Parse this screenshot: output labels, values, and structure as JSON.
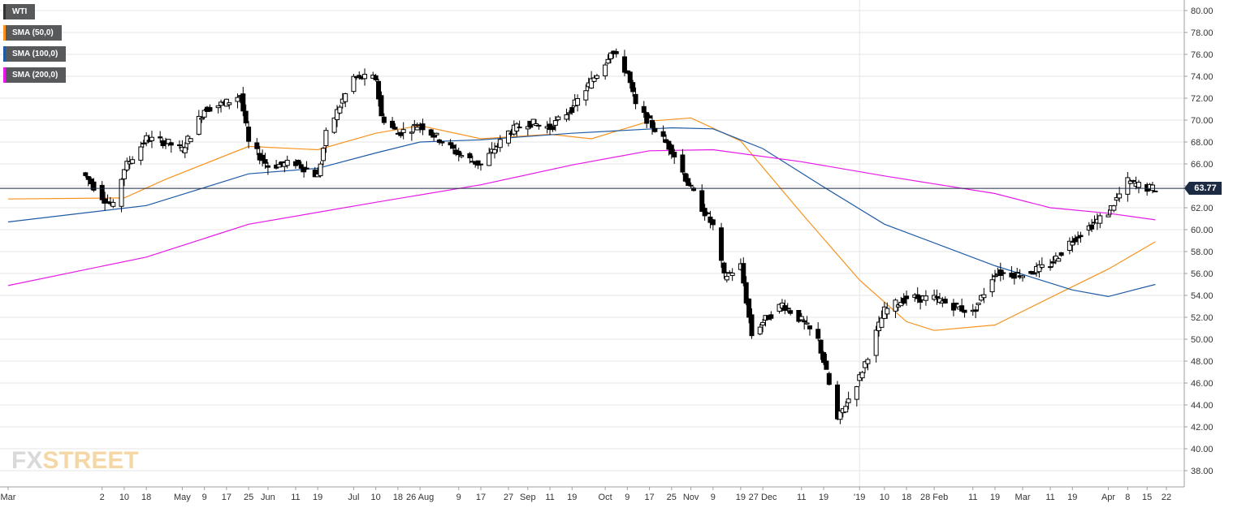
{
  "chart_data": {
    "type": "candlestick",
    "title": "",
    "instrument": "WTI",
    "last_price": "63.77",
    "ylim": [
      38,
      81
    ],
    "y_ticks": [
      "80.00",
      "78.00",
      "76.00",
      "74.00",
      "72.00",
      "70.00",
      "68.00",
      "66.00",
      "64.00",
      "62.00",
      "60.00",
      "58.00",
      "56.00",
      "54.00",
      "52.00",
      "50.00",
      "48.00",
      "46.00",
      "44.00",
      "42.00",
      "40.00",
      "38.00"
    ],
    "x_ticks": [
      {
        "label": "Mar",
        "date": "2018-02-27"
      },
      {
        "label": "2",
        "date": "2018-04-02"
      },
      {
        "label": "10",
        "date": "2018-04-10"
      },
      {
        "label": "18",
        "date": "2018-04-18"
      },
      {
        "label": "May",
        "date": "2018-05-01"
      },
      {
        "label": "9",
        "date": "2018-05-09"
      },
      {
        "label": "17",
        "date": "2018-05-17"
      },
      {
        "label": "25",
        "date": "2018-05-25"
      },
      {
        "label": "Jun",
        "date": "2018-06-01"
      },
      {
        "label": "11",
        "date": "2018-06-11"
      },
      {
        "label": "19",
        "date": "2018-06-19"
      },
      {
        "label": "Jul",
        "date": "2018-07-02"
      },
      {
        "label": "10",
        "date": "2018-07-10"
      },
      {
        "label": "18",
        "date": "2018-07-18"
      },
      {
        "label": "26 Aug",
        "date": "2018-07-26"
      },
      {
        "label": "9",
        "date": "2018-08-09"
      },
      {
        "label": "17",
        "date": "2018-08-17"
      },
      {
        "label": "27",
        "date": "2018-08-27"
      },
      {
        "label": "Sep",
        "date": "2018-09-03"
      },
      {
        "label": "11",
        "date": "2018-09-11"
      },
      {
        "label": "19",
        "date": "2018-09-19"
      },
      {
        "label": "Oct",
        "date": "2018-10-01"
      },
      {
        "label": "9",
        "date": "2018-10-09"
      },
      {
        "label": "17",
        "date": "2018-10-17"
      },
      {
        "label": "25",
        "date": "2018-10-25"
      },
      {
        "label": "Nov",
        "date": "2018-11-01"
      },
      {
        "label": "9",
        "date": "2018-11-09"
      },
      {
        "label": "19",
        "date": "2018-11-19"
      },
      {
        "label": "27 Dec",
        "date": "2018-11-27"
      },
      {
        "label": "11",
        "date": "2018-12-11"
      },
      {
        "label": "19",
        "date": "2018-12-19"
      },
      {
        "label": "'19",
        "date": "2019-01-01"
      },
      {
        "label": "10",
        "date": "2019-01-10"
      },
      {
        "label": "18",
        "date": "2019-01-18"
      },
      {
        "label": "28 Feb",
        "date": "2019-01-28"
      },
      {
        "label": "11",
        "date": "2019-02-11"
      },
      {
        "label": "19",
        "date": "2019-02-19"
      },
      {
        "label": "Mar",
        "date": "2019-03-01"
      },
      {
        "label": "11",
        "date": "2019-03-11"
      },
      {
        "label": "19",
        "date": "2019-03-19"
      },
      {
        "label": "Apr",
        "date": "2019-04-01"
      },
      {
        "label": "8",
        "date": "2019-04-08"
      },
      {
        "label": "15",
        "date": "2019-04-15"
      },
      {
        "label": "22",
        "date": "2019-04-22"
      }
    ],
    "closes": [
      {
        "date": "2018-03-26",
        "close": 65.2
      },
      {
        "date": "2018-04-02",
        "close": 63.0
      },
      {
        "date": "2018-04-06",
        "close": 62.1
      },
      {
        "date": "2018-04-10",
        "close": 65.6
      },
      {
        "date": "2018-04-18",
        "close": 68.3
      },
      {
        "date": "2018-04-25",
        "close": 68.0
      },
      {
        "date": "2018-05-01",
        "close": 67.3
      },
      {
        "date": "2018-05-09",
        "close": 71.0
      },
      {
        "date": "2018-05-17",
        "close": 71.6
      },
      {
        "date": "2018-05-22",
        "close": 72.3
      },
      {
        "date": "2018-05-25",
        "close": 67.9
      },
      {
        "date": "2018-06-01",
        "close": 65.8
      },
      {
        "date": "2018-06-11",
        "close": 66.1
      },
      {
        "date": "2018-06-19",
        "close": 64.9
      },
      {
        "date": "2018-06-22",
        "close": 68.7
      },
      {
        "date": "2018-07-02",
        "close": 73.9
      },
      {
        "date": "2018-07-10",
        "close": 73.8
      },
      {
        "date": "2018-07-12",
        "close": 70.3
      },
      {
        "date": "2018-07-18",
        "close": 68.8
      },
      {
        "date": "2018-07-26",
        "close": 69.6
      },
      {
        "date": "2018-08-09",
        "close": 66.9
      },
      {
        "date": "2018-08-17",
        "close": 65.9
      },
      {
        "date": "2018-08-27",
        "close": 68.9
      },
      {
        "date": "2018-09-03",
        "close": 69.8
      },
      {
        "date": "2018-09-11",
        "close": 69.3
      },
      {
        "date": "2018-09-19",
        "close": 71.1
      },
      {
        "date": "2018-10-01",
        "close": 75.3
      },
      {
        "date": "2018-10-03",
        "close": 76.4
      },
      {
        "date": "2018-10-09",
        "close": 74.3
      },
      {
        "date": "2018-10-12",
        "close": 71.3
      },
      {
        "date": "2018-10-17",
        "close": 69.8
      },
      {
        "date": "2018-10-25",
        "close": 67.3
      },
      {
        "date": "2018-11-01",
        "close": 63.7
      },
      {
        "date": "2018-11-09",
        "close": 60.3
      },
      {
        "date": "2018-11-13",
        "close": 55.7
      },
      {
        "date": "2018-11-19",
        "close": 56.7
      },
      {
        "date": "2018-11-23",
        "close": 50.4
      },
      {
        "date": "2018-11-27",
        "close": 51.6
      },
      {
        "date": "2018-12-04",
        "close": 53.2
      },
      {
        "date": "2018-12-11",
        "close": 51.7
      },
      {
        "date": "2018-12-17",
        "close": 49.9
      },
      {
        "date": "2018-12-19",
        "close": 48.0
      },
      {
        "date": "2018-12-24",
        "close": 42.6
      },
      {
        "date": "2019-01-01",
        "close": 46.5
      },
      {
        "date": "2019-01-10",
        "close": 52.6
      },
      {
        "date": "2019-01-18",
        "close": 53.8
      },
      {
        "date": "2019-01-28",
        "close": 53.7
      },
      {
        "date": "2019-02-11",
        "close": 52.4
      },
      {
        "date": "2019-02-19",
        "close": 56.1
      },
      {
        "date": "2019-03-01",
        "close": 55.9
      },
      {
        "date": "2019-03-11",
        "close": 56.8
      },
      {
        "date": "2019-03-19",
        "close": 59.1
      },
      {
        "date": "2019-04-01",
        "close": 61.6
      },
      {
        "date": "2019-04-08",
        "close": 64.4
      },
      {
        "date": "2019-04-15",
        "close": 63.8
      },
      {
        "date": "2019-04-18",
        "close": 63.77
      }
    ],
    "series": [
      {
        "name": "SMA (50,0)",
        "color": "#f7931e",
        "points": [
          {
            "date": "2018-02-27",
            "value": 62.8
          },
          {
            "date": "2018-04-10",
            "value": 62.9
          },
          {
            "date": "2018-04-25",
            "value": 64.6
          },
          {
            "date": "2018-05-25",
            "value": 67.6
          },
          {
            "date": "2018-06-19",
            "value": 67.3
          },
          {
            "date": "2018-07-10",
            "value": 68.8
          },
          {
            "date": "2018-07-26",
            "value": 69.5
          },
          {
            "date": "2018-08-17",
            "value": 68.3
          },
          {
            "date": "2018-09-11",
            "value": 68.7
          },
          {
            "date": "2018-09-26",
            "value": 68.3
          },
          {
            "date": "2018-10-17",
            "value": 69.9
          },
          {
            "date": "2018-11-01",
            "value": 70.2
          },
          {
            "date": "2018-11-19",
            "value": 68.1
          },
          {
            "date": "2018-12-11",
            "value": 61.5
          },
          {
            "date": "2019-01-01",
            "value": 55.4
          },
          {
            "date": "2019-01-18",
            "value": 51.6
          },
          {
            "date": "2019-01-28",
            "value": 50.8
          },
          {
            "date": "2019-02-19",
            "value": 51.3
          },
          {
            "date": "2019-03-11",
            "value": 53.8
          },
          {
            "date": "2019-04-01",
            "value": 56.4
          },
          {
            "date": "2019-04-18",
            "value": 58.9
          }
        ]
      },
      {
        "name": "SMA (100,0)",
        "color": "#1f5aa6",
        "points": [
          {
            "date": "2018-02-27",
            "value": 60.7
          },
          {
            "date": "2018-04-18",
            "value": 62.2
          },
          {
            "date": "2018-05-25",
            "value": 65.1
          },
          {
            "date": "2018-06-19",
            "value": 65.6
          },
          {
            "date": "2018-07-10",
            "value": 67.0
          },
          {
            "date": "2018-07-26",
            "value": 68.0
          },
          {
            "date": "2018-08-17",
            "value": 68.2
          },
          {
            "date": "2018-09-19",
            "value": 68.8
          },
          {
            "date": "2018-10-25",
            "value": 69.3
          },
          {
            "date": "2018-11-09",
            "value": 69.2
          },
          {
            "date": "2018-11-27",
            "value": 67.4
          },
          {
            "date": "2018-12-19",
            "value": 63.9
          },
          {
            "date": "2019-01-10",
            "value": 60.5
          },
          {
            "date": "2019-02-19",
            "value": 56.7
          },
          {
            "date": "2019-03-19",
            "value": 54.5
          },
          {
            "date": "2019-04-01",
            "value": 53.9
          },
          {
            "date": "2019-04-18",
            "value": 55.0
          }
        ]
      },
      {
        "name": "SMA (200,0)",
        "color": "#e619e6",
        "points": [
          {
            "date": "2018-02-27",
            "value": 54.9
          },
          {
            "date": "2018-04-18",
            "value": 57.5
          },
          {
            "date": "2018-05-25",
            "value": 60.5
          },
          {
            "date": "2018-07-10",
            "value": 62.5
          },
          {
            "date": "2018-08-17",
            "value": 64.1
          },
          {
            "date": "2018-09-19",
            "value": 65.9
          },
          {
            "date": "2018-10-17",
            "value": 67.2
          },
          {
            "date": "2018-11-09",
            "value": 67.3
          },
          {
            "date": "2018-12-11",
            "value": 66.2
          },
          {
            "date": "2019-01-10",
            "value": 64.9
          },
          {
            "date": "2019-02-19",
            "value": 63.3
          },
          {
            "date": "2019-03-11",
            "value": 62.0
          },
          {
            "date": "2019-04-01",
            "value": 61.5
          },
          {
            "date": "2019-04-18",
            "value": 60.9
          }
        ]
      }
    ],
    "colors": {
      "grid": "#e6e6e6",
      "axis": "#9aa0a6",
      "candle": "#000000",
      "price_line": "#1c2a44"
    }
  },
  "legend": [
    {
      "label": "WTI",
      "color": "#333333"
    },
    {
      "label": "SMA (50,0)",
      "color": "#f7931e"
    },
    {
      "label": "SMA (100,0)",
      "color": "#1f5aa6"
    },
    {
      "label": "SMA (200,0)",
      "color": "#e619e6"
    }
  ],
  "logo": {
    "fx": "FX",
    "street": "STREET"
  }
}
